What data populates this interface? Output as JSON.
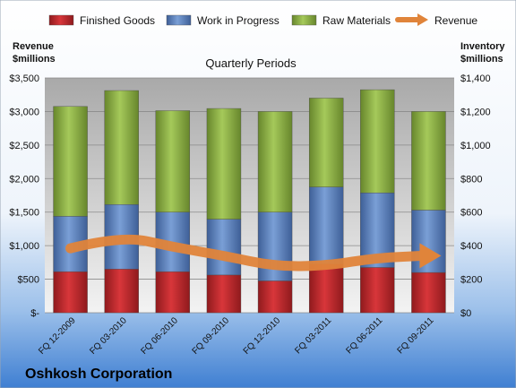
{
  "chart_data": {
    "type": "bar",
    "subtype": "stacked-bar-with-line",
    "title": "Quarterly Periods",
    "caption": "Oshkosh Corporation",
    "categories": [
      "FQ 12-2009",
      "FQ 03-2010",
      "FQ 06-2010",
      "FQ 09-2010",
      "FQ 12-2010",
      "FQ 03-2011",
      "FQ 06-2011",
      "FQ 09-2011"
    ],
    "series": [
      {
        "name": "Finished Goods",
        "axis": "right",
        "color": "#C0282D",
        "values": [
          245,
          260,
          245,
          225,
          190,
          290,
          270,
          240
        ]
      },
      {
        "name": "Work in Progress",
        "axis": "right",
        "color": "#5A7FBF",
        "values": [
          330,
          385,
          355,
          333,
          410,
          460,
          445,
          372
        ]
      },
      {
        "name": "Raw Materials",
        "axis": "right",
        "color": "#8AAF3F",
        "values": [
          655,
          680,
          605,
          660,
          600,
          530,
          615,
          588
        ]
      }
    ],
    "line_series": {
      "name": "Revenue",
      "axis": "left",
      "color": "#E0843A",
      "values": [
        960,
        1150,
        980,
        850,
        690,
        700,
        820,
        850
      ]
    },
    "left_axis": {
      "label_line1": "Revenue",
      "label_line2": "$millions",
      "ylim": [
        0,
        3500
      ],
      "ticks": [
        "$-",
        "$500",
        "$1,000",
        "$1,500",
        "$2,000",
        "$2,500",
        "$3,000",
        "$3,500"
      ]
    },
    "right_axis": {
      "label_line1": "Inventory",
      "label_line2": "$millions",
      "ylim": [
        0,
        1400
      ],
      "ticks": [
        "$0",
        "$200",
        "$400",
        "$600",
        "$800",
        "$1,000",
        "$1,200",
        "$1,400"
      ]
    },
    "legend_position": "top",
    "grid": true
  }
}
